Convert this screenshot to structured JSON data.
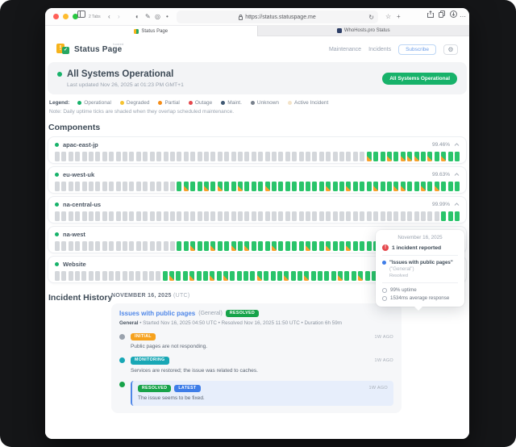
{
  "browser": {
    "tabs_count_label": "2 Tabs",
    "url": "https://status.statuspage.me",
    "tabs": [
      {
        "label": "Status Page"
      },
      {
        "label": "WhoHosts.pro Status"
      }
    ],
    "icons": {
      "back": "‹",
      "forward": "›",
      "reload": "↻",
      "star": "☆",
      "plus": "+",
      "more": "⋯",
      "ext1": "◐",
      "ext2": "✎",
      "ext3": "◎",
      "ext4": "•"
    }
  },
  "header": {
    "brand": "Status Page",
    "brand_sup": "hosted",
    "nav": [
      "Maintenance",
      "Incidents"
    ],
    "subscribe_label": "Subscribe",
    "gear": "⚙"
  },
  "hero": {
    "title": "All Systems Operational",
    "updated": "Last updated Nov 26, 2025 at 01:23 PM GMT+1",
    "badge": "All Systems Operational"
  },
  "legend": {
    "label": "Legend:",
    "items": [
      {
        "label": "Operational",
        "color": "#17b26a"
      },
      {
        "label": "Degraded",
        "color": "#f6c331"
      },
      {
        "label": "Partial",
        "color": "#f58c17"
      },
      {
        "label": "Outage",
        "color": "#e5484d"
      },
      {
        "label": "Maint.",
        "color": "#3f5873"
      },
      {
        "label": "Unknown",
        "color": "#78808c"
      },
      {
        "label": "Active Incident",
        "color": "#f3e3c8"
      }
    ],
    "note": "Note: Daily uptime ticks are shaded when they overlap scheduled maintenance."
  },
  "components": {
    "title": "Components",
    "rows": [
      {
        "name": "apac-east-jp",
        "uptime": "99.46%",
        "ticks": "uuuuuuuuuuuuuuuuuuuuuuuuuuuuuuuuuuuuuuuuuuuuuumoomommmomomoo"
      },
      {
        "name": "eu-west-uk",
        "uptime": "99.63%",
        "ticks": "uuuuuuuuuuuuuuuuuuomoomomoomooomoooooooomoomooomoommoomomooo"
      },
      {
        "name": "na-central-us",
        "uptime": "99.99%",
        "ticks": "uuuuuuuuuuuuuuuuuuuuuuuuuuuuuuuuuuuuuuuuuuuuuuuuuuuuuuuuuooo"
      },
      {
        "name": "na-west",
        "uptime": "",
        "ticks": "uuuuuuuuuuuuuuuuuuoomoomoomomooomoooomoomoomoooomomoomooomoo"
      },
      {
        "name": "Website",
        "uptime": "",
        "ticks": "uuuuuuuuuuuuuuuuomoomoomomoooomooomoomoooomoomoooomomhMmoomo"
      }
    ]
  },
  "tooltip": {
    "date": "November 16, 2025",
    "alert_glyph": "!",
    "incident_count": "1 incident reported",
    "incident_title": "\"Issues with public pages\"",
    "incident_scope": "(\"General\")",
    "incident_status": "Resolved",
    "uptime": "99% uptime",
    "response": "1534ms average response"
  },
  "incidents": {
    "title": "Incident History",
    "date_header": "NOVEMBER 16, 2025",
    "date_suffix": "(UTC)",
    "incident": {
      "title": "Issues with public pages",
      "scope": "(General)",
      "status_badge": "RESOLVED",
      "meta_bold": "General",
      "meta_rest": " • Started Nov 16, 2025 04:50 UTC • Resolved Nov 16, 2025 11:50 UTC • Duration 6h 59m",
      "updates": [
        {
          "badge": "INITIAL",
          "time": "1W AGO",
          "text": "Public pages are not responding."
        },
        {
          "badge": "MONITORING",
          "time": "1W AGO",
          "text": "Services are restored; the issue was related to caches."
        },
        {
          "badge": "RESOLVED",
          "latest_badge": "LATEST",
          "time": "1W AGO",
          "text": "The issue seems to be fixed."
        }
      ]
    }
  },
  "colors": {
    "accent_green": "#17b26a",
    "tick_green": "#29c46a",
    "tick_gray": "#d4d7db",
    "maintenance_orange": "#f7a02c",
    "link_blue": "#4f87e8",
    "alert_red": "#e5484d"
  }
}
